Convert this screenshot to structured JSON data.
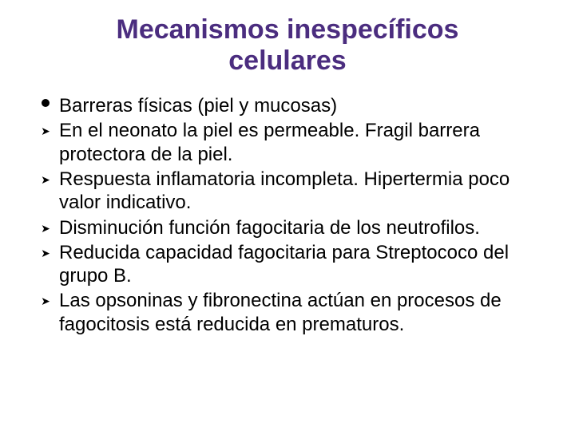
{
  "title_color": "#4b2d7f",
  "title_fontsize": 34,
  "body_fontsize": 24,
  "text_color": "#000000",
  "background_color": "#ffffff",
  "title_lines": [
    "Mecanismos inespecíficos",
    "celulares"
  ],
  "items": [
    {
      "bullet": "dot",
      "text": "Barreras físicas (piel y mucosas)"
    },
    {
      "bullet": "arrow",
      "text": "En el neonato la piel es permeable. Fragil barrera protectora de la piel."
    },
    {
      "bullet": "arrow",
      "text": "Respuesta inflamatoria incompleta. Hipertermia poco valor indicativo."
    },
    {
      "bullet": "arrow",
      "text": "Disminución función fagocitaria de los neutrofilos."
    },
    {
      "bullet": "arrow",
      "text": "Reducida capacidad fagocitaria para Streptococo del grupo B."
    },
    {
      "bullet": "arrow",
      "text": "Las opsoninas y fibronectina actúan en procesos de fagocitosis está reducida en prematuros."
    }
  ]
}
